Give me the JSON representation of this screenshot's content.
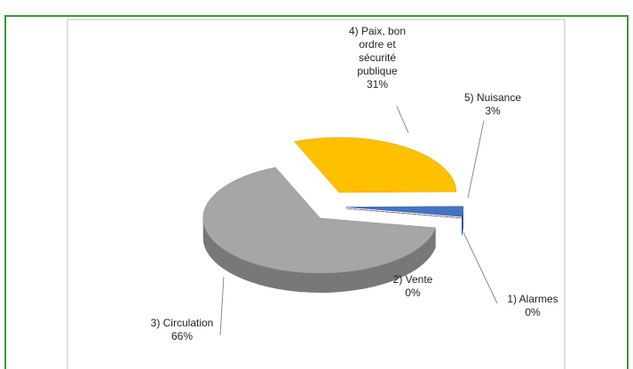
{
  "chart_data": {
    "type": "pie",
    "categories": [
      "1) Alarmes",
      "2) Vente",
      "3) Circulation",
      "4) Paix, bon ordre et sécurité publique",
      "5) Nuisance"
    ],
    "values": [
      0,
      0,
      66,
      31,
      3
    ],
    "value_labels": [
      "0%",
      "0%",
      "66%",
      "31%",
      "3%"
    ],
    "colors": [
      "#8b3a0f",
      "#7f7f7f",
      "#a6a6a6",
      "#ffc000",
      "#4472c4"
    ]
  }
}
